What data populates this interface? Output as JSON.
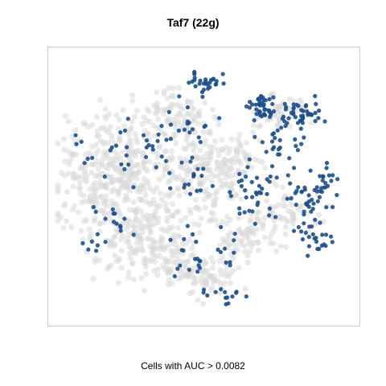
{
  "chart_data": {
    "type": "scatter",
    "title": "Taf7 (22g)",
    "caption": "Cells with AUC > 0.0082",
    "grid": false,
    "legend": "none",
    "colors": {
      "background_cells": "#d9d9d9",
      "active_cells": "#1c4f8a",
      "panel_border": "#cccccc"
    },
    "highlighted_clusters": [
      {
        "cx": 0.5,
        "cy": 0.9,
        "rx": 0.05,
        "ry": 0.035,
        "n": 30
      },
      {
        "cx": 0.7,
        "cy": 0.81,
        "rx": 0.06,
        "ry": 0.05,
        "n": 45
      },
      {
        "cx": 0.84,
        "cy": 0.78,
        "rx": 0.06,
        "ry": 0.045,
        "n": 40
      },
      {
        "cx": 0.77,
        "cy": 0.66,
        "rx": 0.08,
        "ry": 0.08,
        "n": 30
      },
      {
        "cx": 0.44,
        "cy": 0.74,
        "rx": 0.07,
        "ry": 0.05,
        "n": 18
      },
      {
        "cx": 0.27,
        "cy": 0.63,
        "rx": 0.1,
        "ry": 0.08,
        "n": 25
      },
      {
        "cx": 0.85,
        "cy": 0.44,
        "rx": 0.07,
        "ry": 0.1,
        "n": 40
      },
      {
        "cx": 0.66,
        "cy": 0.47,
        "rx": 0.08,
        "ry": 0.1,
        "n": 35
      },
      {
        "cx": 0.92,
        "cy": 0.53,
        "rx": 0.03,
        "ry": 0.07,
        "n": 15
      },
      {
        "cx": 0.88,
        "cy": 0.3,
        "rx": 0.05,
        "ry": 0.04,
        "n": 20
      },
      {
        "cx": 0.47,
        "cy": 0.52,
        "rx": 0.08,
        "ry": 0.07,
        "n": 18
      },
      {
        "cx": 0.2,
        "cy": 0.37,
        "rx": 0.07,
        "ry": 0.06,
        "n": 14
      },
      {
        "cx": 0.45,
        "cy": 0.25,
        "rx": 0.08,
        "ry": 0.09,
        "n": 20
      },
      {
        "cx": 0.58,
        "cy": 0.25,
        "rx": 0.04,
        "ry": 0.06,
        "n": 10
      },
      {
        "cx": 0.57,
        "cy": 0.08,
        "rx": 0.05,
        "ry": 0.03,
        "n": 12
      },
      {
        "cx": 0.12,
        "cy": 0.3,
        "rx": 0.05,
        "ry": 0.05,
        "n": 6
      },
      {
        "cx": 0.08,
        "cy": 0.66,
        "rx": 0.03,
        "ry": 0.08,
        "n": 6
      }
    ],
    "background_clusters": [
      {
        "cx": 0.2,
        "cy": 0.55,
        "rx": 0.17,
        "ry": 0.2,
        "n": 380
      },
      {
        "cx": 0.3,
        "cy": 0.3,
        "rx": 0.15,
        "ry": 0.13,
        "n": 180
      },
      {
        "cx": 0.4,
        "cy": 0.78,
        "rx": 0.1,
        "ry": 0.08,
        "n": 80
      },
      {
        "cx": 0.5,
        "cy": 0.55,
        "rx": 0.12,
        "ry": 0.15,
        "n": 150
      },
      {
        "cx": 0.62,
        "cy": 0.6,
        "rx": 0.08,
        "ry": 0.07,
        "n": 60
      },
      {
        "cx": 0.52,
        "cy": 0.15,
        "rx": 0.08,
        "ry": 0.07,
        "n": 60
      },
      {
        "cx": 0.65,
        "cy": 0.3,
        "rx": 0.08,
        "ry": 0.1,
        "n": 70
      },
      {
        "cx": 0.78,
        "cy": 0.4,
        "rx": 0.1,
        "ry": 0.08,
        "n": 60
      },
      {
        "cx": 0.4,
        "cy": 0.2,
        "rx": 0.1,
        "ry": 0.06,
        "n": 60
      },
      {
        "cx": 0.76,
        "cy": 0.78,
        "rx": 0.1,
        "ry": 0.06,
        "n": 50
      }
    ]
  }
}
